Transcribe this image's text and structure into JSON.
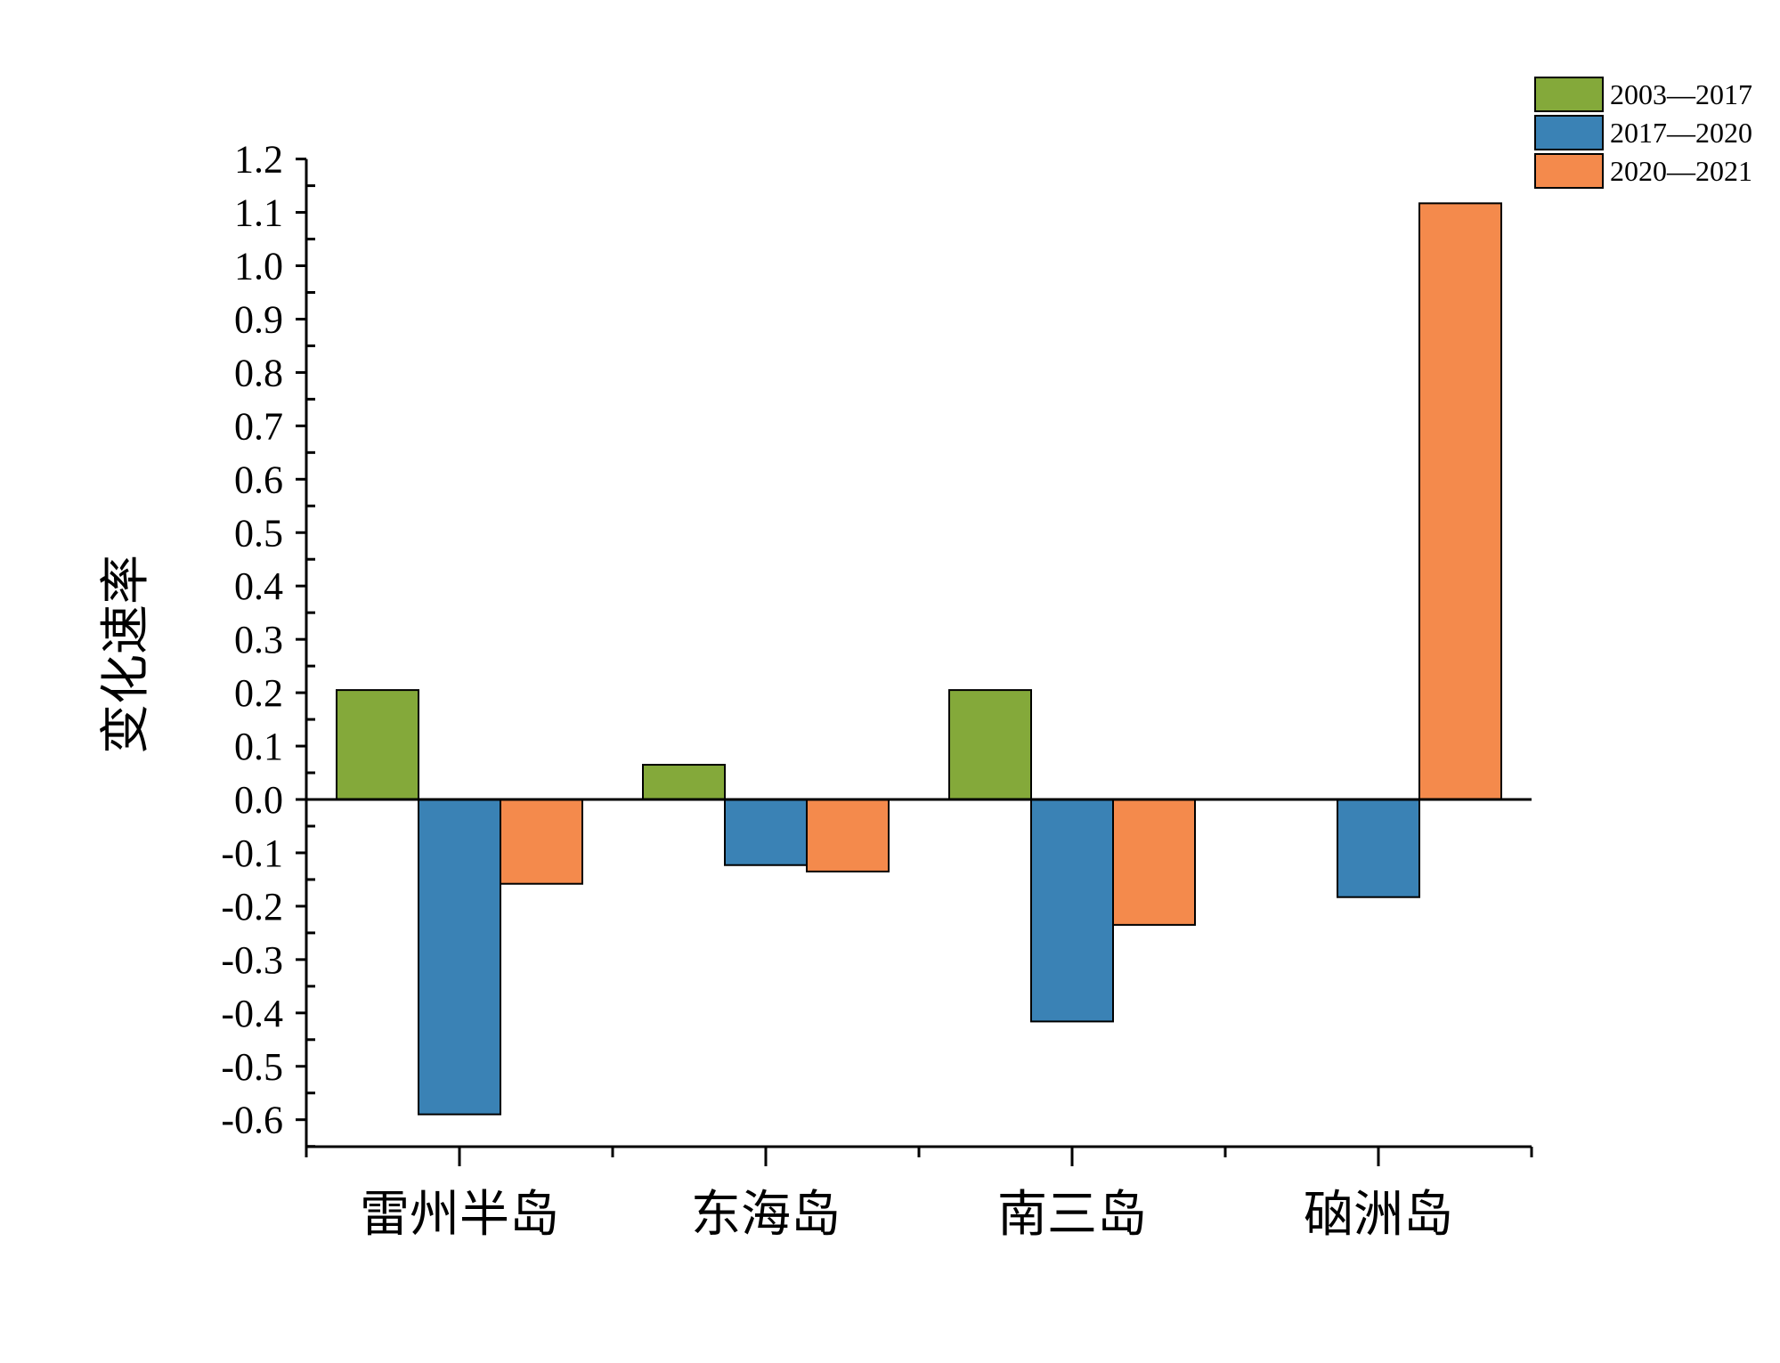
{
  "chart_data": {
    "type": "bar",
    "categories": [
      "雷州半岛",
      "东海岛",
      "南三岛",
      "硇洲岛"
    ],
    "series": [
      {
        "name": "2003—2017",
        "color": "#84a93a",
        "values": [
          0.205,
          0.065,
          0.205,
          null
        ]
      },
      {
        "name": "2017—2020",
        "color": "#3a82b5",
        "values": [
          -0.59,
          -0.123,
          -0.416,
          -0.183
        ]
      },
      {
        "name": "2020—2021",
        "color": "#f48a4c",
        "values": [
          -0.158,
          -0.135,
          -0.235,
          1.117
        ]
      }
    ],
    "ylabel": "变化速率",
    "ylim": [
      -0.65,
      1.2
    ],
    "yticks": [
      "1.2",
      "1.1",
      "1.0",
      "0.9",
      "0.8",
      "0.7",
      "0.6",
      "0.5",
      "0.4",
      "0.3",
      "0.2",
      "0.1",
      "0.0",
      "-0.1",
      "-0.2",
      "-0.3",
      "-0.4",
      "-0.5",
      "-0.6"
    ],
    "legend_position": "top-right",
    "grid": false
  }
}
